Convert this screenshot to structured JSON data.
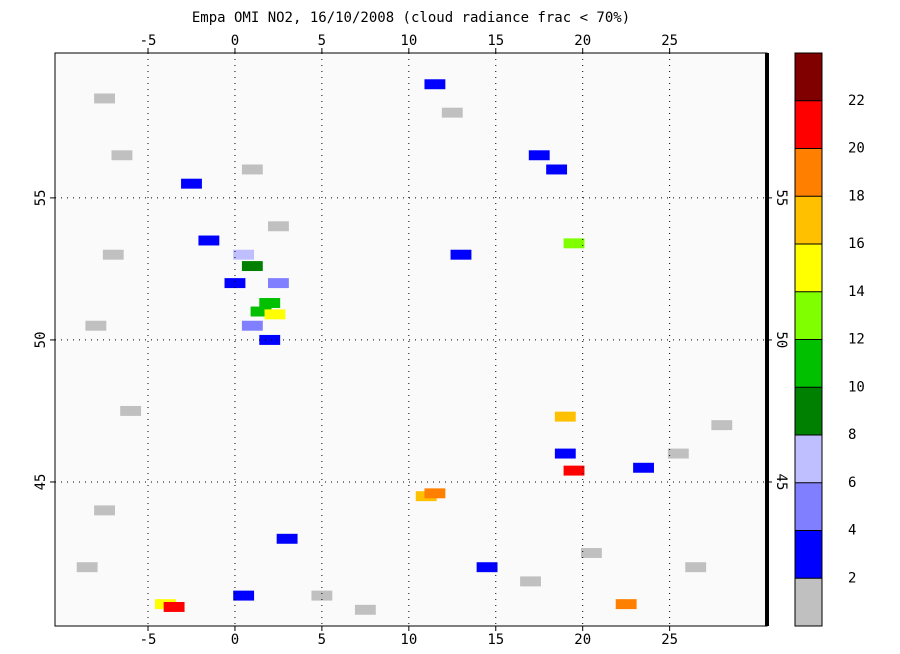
{
  "map": {
    "title": "Empa OMI NO2, 16/10/2008 (cloud radiance frac < 70%)",
    "xlim": [
      -10.35,
      30.6
    ],
    "ylim": [
      39.93,
      60.1
    ],
    "xticks": [
      -5,
      0,
      5,
      10,
      15,
      20,
      25
    ],
    "yticks": [
      45,
      50,
      55
    ],
    "grid": true,
    "colorbar": {
      "lim": [
        0,
        24
      ],
      "colors": [
        "#c0c0c0",
        "#0000ff",
        "#7f7fff",
        "#bfbfff",
        "#008000",
        "#00c000",
        "#80ff00",
        "#ffff00",
        "#ffc000",
        "#ff8000",
        "#ff0000",
        "#800000"
      ],
      "ticks": [
        2,
        4,
        6,
        8,
        10,
        12,
        14,
        16,
        18,
        20,
        22
      ]
    },
    "cells": [
      {
        "lon": -7.5,
        "lat": 58.5,
        "value": 1
      },
      {
        "lon": -6.5,
        "lat": 56.5,
        "value": 1
      },
      {
        "lon": -7.0,
        "lat": 53.0,
        "value": 1
      },
      {
        "lon": -8.0,
        "lat": 50.5,
        "value": 1
      },
      {
        "lon": -6.0,
        "lat": 47.5,
        "value": 1
      },
      {
        "lon": -7.5,
        "lat": 44.0,
        "value": 1
      },
      {
        "lon": -8.5,
        "lat": 42.0,
        "value": 1
      },
      {
        "lon": 1.0,
        "lat": 56.0,
        "value": 1
      },
      {
        "lon": 2.5,
        "lat": 54.0,
        "value": 1
      },
      {
        "lon": 5.0,
        "lat": 41.0,
        "value": 1
      },
      {
        "lon": 7.5,
        "lat": 40.5,
        "value": 1
      },
      {
        "lon": 17.0,
        "lat": 41.5,
        "value": 1
      },
      {
        "lon": 20.5,
        "lat": 42.5,
        "value": 1
      },
      {
        "lon": 26.5,
        "lat": 42.0,
        "value": 1
      },
      {
        "lon": 28.0,
        "lat": 47.0,
        "value": 1
      },
      {
        "lon": 25.5,
        "lat": 46.0,
        "value": 1
      },
      {
        "lon": 12.5,
        "lat": 58.0,
        "value": 1
      },
      {
        "lon": 0.0,
        "lat": 52.0,
        "value": 3
      },
      {
        "lon": -1.5,
        "lat": 53.5,
        "value": 3
      },
      {
        "lon": -2.5,
        "lat": 55.5,
        "value": 3
      },
      {
        "lon": 17.5,
        "lat": 56.5,
        "value": 3
      },
      {
        "lon": 18.5,
        "lat": 56.0,
        "value": 3
      },
      {
        "lon": 19.0,
        "lat": 46.0,
        "value": 3
      },
      {
        "lon": 14.5,
        "lat": 42.0,
        "value": 3
      },
      {
        "lon": 0.5,
        "lat": 41.0,
        "value": 3
      },
      {
        "lon": 23.5,
        "lat": 45.5,
        "value": 3
      },
      {
        "lon": 13.0,
        "lat": 53.0,
        "value": 3
      },
      {
        "lon": 11.5,
        "lat": 59.0,
        "value": 3
      },
      {
        "lon": 2.0,
        "lat": 50.0,
        "value": 3
      },
      {
        "lon": 3.0,
        "lat": 43.0,
        "value": 3
      },
      {
        "lon": 1.0,
        "lat": 50.5,
        "value": 5
      },
      {
        "lon": 2.5,
        "lat": 52.0,
        "value": 5
      },
      {
        "lon": 0.5,
        "lat": 53.0,
        "value": 7
      },
      {
        "lon": 1.0,
        "lat": 52.6,
        "value": 9
      },
      {
        "lon": 1.5,
        "lat": 51.0,
        "value": 11
      },
      {
        "lon": 2.0,
        "lat": 51.3,
        "value": 11
      },
      {
        "lon": 2.3,
        "lat": 50.9,
        "value": 15
      },
      {
        "lon": 11.0,
        "lat": 44.5,
        "value": 16
      },
      {
        "lon": 11.5,
        "lat": 44.6,
        "value": 18
      },
      {
        "lon": -4.0,
        "lat": 40.7,
        "value": 14
      },
      {
        "lon": -3.5,
        "lat": 40.6,
        "value": 21
      },
      {
        "lon": 19.0,
        "lat": 47.3,
        "value": 16
      },
      {
        "lon": 22.5,
        "lat": 40.7,
        "value": 18
      },
      {
        "lon": 19.5,
        "lat": 45.4,
        "value": 21
      },
      {
        "lon": 19.5,
        "lat": 53.4,
        "value": 13
      }
    ]
  }
}
